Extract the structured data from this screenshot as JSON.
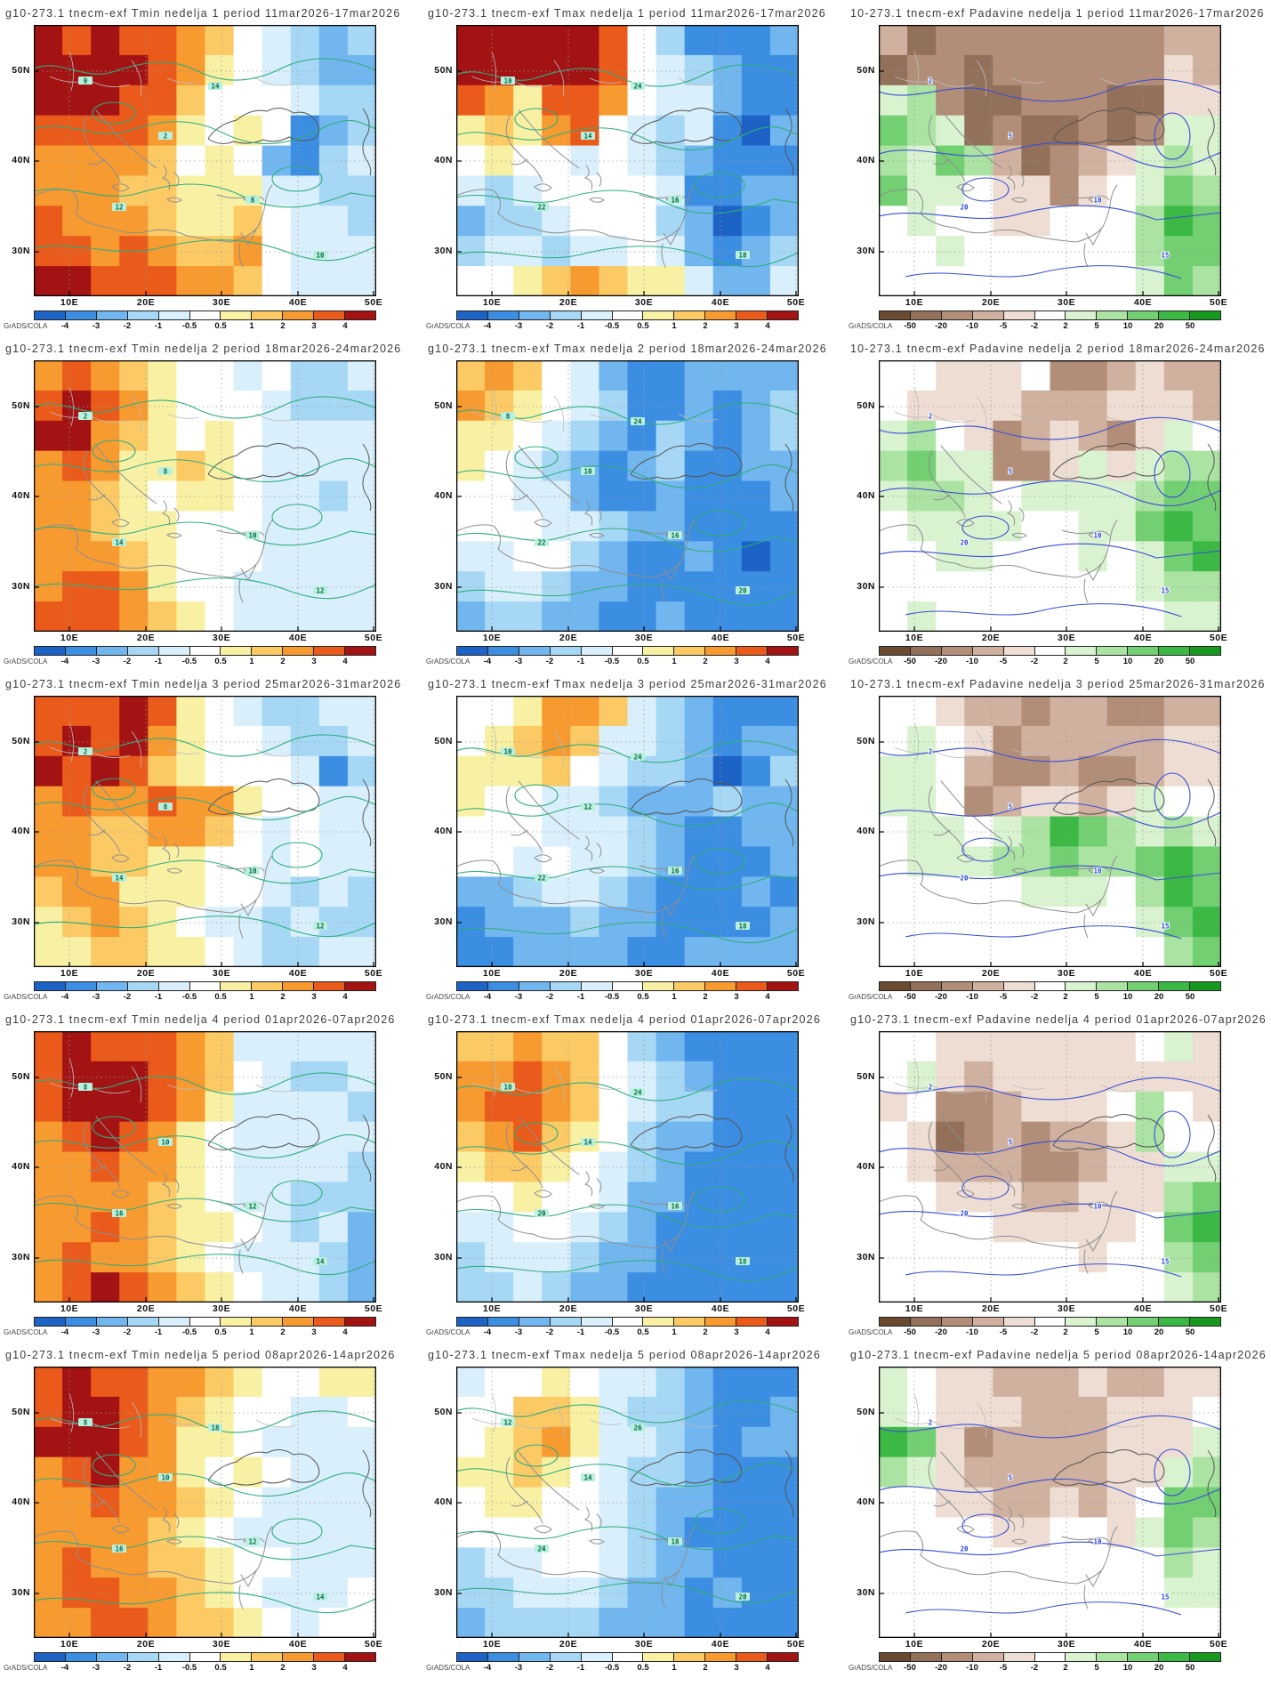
{
  "grads_label": "GrADS/COLA",
  "axis": {
    "lats": [
      "50N",
      "40N",
      "30N"
    ],
    "lons": [
      "10E",
      "20E",
      "30E",
      "40E",
      "50E"
    ]
  },
  "colorbars": {
    "temp_ticks": [
      "-4",
      "-3",
      "-2",
      "-1",
      "-0.5",
      "0.5",
      "1",
      "2",
      "3",
      "4"
    ],
    "precip_ticks": [
      "-50",
      "-20",
      "-10",
      "-5",
      "-2",
      "2",
      "5",
      "10",
      "20",
      "50"
    ]
  },
  "palettes": {
    "temp": [
      "#1d63c6",
      "#3c8ee2",
      "#71b6ee",
      "#a6d8f6",
      "#d9effb",
      "#ffffff",
      "#f8f1a4",
      "#fbca65",
      "#f79a30",
      "#ea5a1b",
      "#a31313"
    ],
    "precip": [
      "#6a4a30",
      "#92705a",
      "#b28e78",
      "#d0b09e",
      "#eeddd2",
      "#ffffff",
      "#d9f2cf",
      "#abe3a2",
      "#72cf72",
      "#3cb944",
      "#179920"
    ]
  },
  "contour_style": {
    "temp_line": "#2fae7d",
    "temp_label_bg": "#b9f0dd",
    "temp_label_fg": "#0a6a4a",
    "precip_line": "#3a4fd8",
    "precip_label_fg": "#2743d8"
  },
  "map_style": {
    "coast": "#8f8f8f",
    "coast_dark": "#555555",
    "border_lines": "#bcbcbc",
    "frame": "#000000",
    "grid_dots": "#9a9a9a"
  },
  "panels": [
    {
      "title": "g10-273.1 tnecm-exf Tmin nedelja 1 period 11mar2026-17mar2026",
      "type": "temp",
      "contour_labels": [
        "0",
        "2",
        "8",
        "10",
        "12",
        "14"
      ],
      "grid": [
        "A9A998754323",
        "AAAA98654322",
        "AAA997555433",
        "999986565123",
        "888875652134",
        "888776664433",
        "988876675443",
        "998987785444",
        "AA9998875444"
      ]
    },
    {
      "title": "g10-273.1 tnecm-exf Tmax nedelja 1 period 11mar2026-17mar2026",
      "type": "temp",
      "contour_labels": [
        "10",
        "14",
        "16",
        "18",
        "22",
        "24"
      ],
      "grid": [
        "AAAAA9531112",
        "AAAAA9543211",
        "986998544211",
        "676895434102",
        "565545432111",
        "434555541122",
        "233455532012",
        "344344542123",
        "556787664224"
      ]
    },
    {
      "title": "10-273.1 tnecm-exf Padavine nedelja 1 period 11mar2026-17mar2026",
      "type": "precip",
      "contour_labels": [
        "2",
        "5",
        "10",
        "15",
        "20"
      ],
      "grid": [
        "312222222233",
        "122122222243",
        "672112221144",
        "876121121266",
        "768731234676",
        "866544245687",
        "565544555798",
        "556555555788",
        "555555555687"
      ]
    },
    {
      "title": "g10-273.1 tnecm-exf Tmin nedelja 2 period 18mar2026-24mar2026",
      "type": "temp",
      "contour_labels": [
        "2",
        "8",
        "10",
        "12",
        "14"
      ],
      "grid": [
        "898765545334",
        "9A9865554333",
        "AA8765654444",
        "898667654444",
        "887656654434",
        "887665554444",
        "888765554444",
        "899865544444",
        "999876544444"
      ]
    },
    {
      "title": "g10-273.1 tnecm-exf Tmax nedelja 2 period 18mar2026-24mar2026",
      "type": "temp",
      "contour_labels": [
        "8",
        "10",
        "16",
        "20",
        "22",
        "24"
      ],
      "grid": [
        "787542112222",
        "876543112123",
        "665432132123",
        "654321231122",
        "554421121112",
        "555443221111",
        "445532112101",
        "344322111111",
        "233221121111"
      ]
    },
    {
      "title": "10-273.1 tnecm-exf Padavine nedelja 2 period 18mar2026-24mar2026",
      "type": "precip",
      "contour_labels": [
        "2",
        "5",
        "10",
        "15",
        "20"
      ],
      "grid": [
        "554445223433",
        "544443334443",
        "675423432465",
        "786622464677",
        "677656666788",
        "566665566898",
        "556655565689",
        "555555555677",
        "565555555566"
      ]
    },
    {
      "title": "g10-273.1 tnecm-exf Tmin nedelja 3 period 25mar2026-31mar2026",
      "type": "temp",
      "contour_labels": [
        "2",
        "8",
        "10",
        "12",
        "14"
      ],
      "grid": [
        "999A96543344",
        "9A9A86554334",
        "A9A976555413",
        "898898865544",
        "887788754544",
        "887766554544",
        "788666554343",
        "678765443433",
        "667766543344"
      ]
    },
    {
      "title": "g10-273.1 tnecm-exf Tmax nedelja 3 period 25mar2026-31mar2026",
      "type": "temp",
      "contour_labels": [
        "10",
        "12",
        "16",
        "18",
        "22",
        "24"
      ],
      "grid": [
        "556887432111",
        "567874432122",
        "666754332013",
        "655443222322",
        "555444321122",
        "554544321112",
        "223443211121",
        "122232211112",
        "112222112222"
      ]
    },
    {
      "title": "10-273.1 tnecm-exf Padavine nedelja 3 period 25mar2026-31mar2026",
      "type": "precip",
      "contour_labels": [
        "2",
        "5",
        "10",
        "15",
        "20"
      ],
      "grid": [
        "554332332233",
        "565423333344",
        "665322322344",
        "665234434655",
        "566567987676",
        "566677877898",
        "555556665798",
        "555555555689",
        "555555555578"
      ]
    },
    {
      "title": "g10-273.1 tnecm-exf Tmin nedelja 4 period 01apr2026-07apr2026",
      "type": "temp",
      "contour_labels": [
        "8",
        "10",
        "12",
        "14",
        "16"
      ],
      "grid": [
        "9A9998744444",
        "9AAA98754334",
        "9AAA98644443",
        "89A986544444",
        "889886544443",
        "888876544333",
        "889876654342",
        "898876544432",
        "89A987654432"
      ]
    },
    {
      "title": "g10-273.1 tnecm-exf Tmax nedelja 4 period 01apr2026-07apr2026",
      "type": "temp",
      "contour_labels": [
        "10",
        "14",
        "16",
        "18",
        "20",
        "24"
      ],
      "grid": [
        "778775321111",
        "889875432111",
        "899875433111",
        "789765322111",
        "677654321111",
        "556554221111",
        "445543211111",
        "344432211111",
        "334322111111"
      ]
    },
    {
      "title": "g10-273.1 tnecm-exf Padavine nedelja 4 period 01apr2026-07apr2026",
      "type": "precip",
      "contour_labels": [
        "2",
        "5",
        "10",
        "15",
        "20"
      ],
      "grid": [
        "554444444564",
        "564344444444",
        "452234445754",
        "541232334755",
        "543332234466",
        "554443344478",
        "555544444589",
        "555555545578",
        "555555555567"
      ]
    },
    {
      "title": "g10-273.1 tnecm-exf Tmin nedelja 5 period 08apr2026-14apr2026",
      "type": "temp",
      "contour_labels": [
        "8",
        "10",
        "12",
        "14",
        "16",
        "18"
      ],
      "grid": [
        "9A9988765566",
        "9AA987655445",
        "AAA986654444",
        "89A886565444",
        "889887654444",
        "888876544444",
        "898877655444",
        "899887654445",
        "889987765455"
      ]
    },
    {
      "title": "g10-273.1 tnecm-exf Tmax nedelja 5 period 08apr2026-14apr2026",
      "type": "temp",
      "contour_labels": [
        "12",
        "14",
        "18",
        "20",
        "24",
        "26"
      ],
      "grid": [
        "455654432111",
        "557764332112",
        "567864432122",
        "667654332111",
        "566554322111",
        "555554321111",
        "344554322111",
        "334443221211",
        "233332221111"
      ]
    },
    {
      "title": "g10-273.1 tnecm-exf Padavine nedelja 5 period 08apr2026-14apr2026",
      "type": "precip",
      "contour_labels": [
        "2",
        "5",
        "10",
        "15",
        "20"
      ],
      "grid": [
        "654433343344",
        "654443334445",
        "984233334446",
        "764333334467",
        "554433434588",
        "555544554687",
        "555555555576",
        "555555555566",
        "555555555555"
      ]
    }
  ]
}
